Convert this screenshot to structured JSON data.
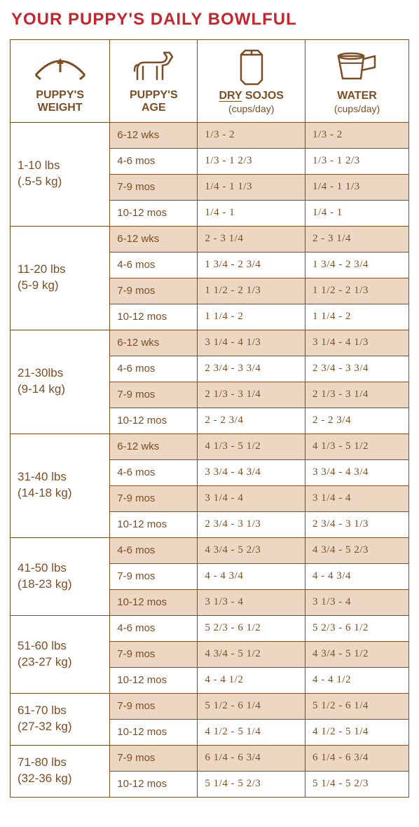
{
  "title": "YOUR PUPPY'S DAILY BOWLFUL",
  "colors": {
    "title": "#c1272d",
    "line": "#7d4e24",
    "text": "#7d4e24",
    "shade": "#ecd7c2",
    "bg": "#ffffff"
  },
  "headers": {
    "weight": {
      "label_l1": "PUPPY'S",
      "label_l2": "WEIGHT"
    },
    "age": {
      "label_l1": "PUPPY'S",
      "label_l2": "AGE"
    },
    "dry": {
      "label_prefix": "DRY",
      "label_suffix": " SOJOS",
      "sub": "(cups/day)"
    },
    "water": {
      "label": "WATER",
      "sub": "(cups/day)"
    }
  },
  "groups": [
    {
      "weight_l1": "1-10 lbs",
      "weight_l2": "(.5-5 kg)",
      "rows": [
        {
          "age": "6-12 wks",
          "dry": "1/3 - 2",
          "water": "1/3 - 2",
          "shade": true
        },
        {
          "age": "4-6 mos",
          "dry": "1/3 - 1 2/3",
          "water": "1/3 - 1 2/3",
          "shade": false
        },
        {
          "age": "7-9 mos",
          "dry": "1/4 - 1 1/3",
          "water": "1/4 - 1 1/3",
          "shade": true
        },
        {
          "age": "10-12 mos",
          "dry": "1/4 - 1",
          "water": "1/4 - 1",
          "shade": false
        }
      ]
    },
    {
      "weight_l1": "11-20 lbs",
      "weight_l2": "(5-9 kg)",
      "rows": [
        {
          "age": "6-12 wks",
          "dry": "2 - 3 1/4",
          "water": "2 - 3 1/4",
          "shade": true
        },
        {
          "age": "4-6 mos",
          "dry": "1 3/4 - 2 3/4",
          "water": "1 3/4 - 2 3/4",
          "shade": false
        },
        {
          "age": "7-9 mos",
          "dry": "1 1/2 - 2 1/3",
          "water": "1 1/2 - 2 1/3",
          "shade": true
        },
        {
          "age": "10-12 mos",
          "dry": "1 1/4 - 2",
          "water": "1 1/4 - 2",
          "shade": false
        }
      ]
    },
    {
      "weight_l1": "21-30lbs",
      "weight_l2": "(9-14 kg)",
      "rows": [
        {
          "age": "6-12 wks",
          "dry": "3 1/4 - 4 1/3",
          "water": "3 1/4 - 4 1/3",
          "shade": true
        },
        {
          "age": "4-6 mos",
          "dry": "2 3/4 - 3 3/4",
          "water": "2 3/4 - 3 3/4",
          "shade": false
        },
        {
          "age": "7-9 mos",
          "dry": "2 1/3 - 3 1/4",
          "water": "2 1/3 - 3 1/4",
          "shade": true
        },
        {
          "age": "10-12 mos",
          "dry": "2  - 2 3/4",
          "water": "2  - 2 3/4",
          "shade": false
        }
      ]
    },
    {
      "weight_l1": "31-40 lbs",
      "weight_l2": "(14-18 kg)",
      "rows": [
        {
          "age": "6-12 wks",
          "dry": "4 1/3 - 5 1/2",
          "water": "4 1/3 - 5 1/2",
          "shade": true
        },
        {
          "age": "4-6 mos",
          "dry": "3 3/4 - 4 3/4",
          "water": "3 3/4 - 4 3/4",
          "shade": false
        },
        {
          "age": "7-9 mos",
          "dry": "3 1/4 - 4",
          "water": "3 1/4 - 4",
          "shade": true
        },
        {
          "age": "10-12 mos",
          "dry": "2 3/4 - 3 1/3",
          "water": "2 3/4 - 3 1/3",
          "shade": false
        }
      ]
    },
    {
      "weight_l1": "41-50 lbs",
      "weight_l2": "(18-23 kg)",
      "rows": [
        {
          "age": "4-6 mos",
          "dry": "4 3/4 - 5 2/3",
          "water": "4 3/4 - 5 2/3",
          "shade": true
        },
        {
          "age": "7-9 mos",
          "dry": "4 - 4 3/4",
          "water": "4 - 4 3/4",
          "shade": false
        },
        {
          "age": "10-12 mos",
          "dry": "3 1/3 - 4",
          "water": "3 1/3 - 4",
          "shade": true
        }
      ]
    },
    {
      "weight_l1": "51-60 lbs",
      "weight_l2": "(23-27 kg)",
      "rows": [
        {
          "age": "4-6 mos",
          "dry": "5 2/3 - 6 1/2",
          "water": "5 2/3 - 6 1/2",
          "shade": false
        },
        {
          "age": "7-9 mos",
          "dry": "4 3/4 - 5 1/2",
          "water": "4 3/4 - 5 1/2",
          "shade": true
        },
        {
          "age": "10-12 mos",
          "dry": "4 - 4 1/2",
          "water": "4 - 4 1/2",
          "shade": false
        }
      ]
    },
    {
      "weight_l1": "61-70 lbs",
      "weight_l2": "(27-32 kg)",
      "rows": [
        {
          "age": "7-9 mos",
          "dry": "5 1/2 - 6 1/4",
          "water": "5 1/2 - 6 1/4",
          "shade": true
        },
        {
          "age": "10-12 mos",
          "dry": "4 1/2 - 5 1/4",
          "water": "4 1/2 - 5 1/4",
          "shade": false
        }
      ]
    },
    {
      "weight_l1": "71-80 lbs",
      "weight_l2": "(32-36 kg)",
      "rows": [
        {
          "age": "7-9 mos",
          "dry": "6 1/4 - 6 3/4",
          "water": "6 1/4 - 6 3/4",
          "shade": true
        },
        {
          "age": "10-12 mos",
          "dry": "5 1/4 - 5 2/3",
          "water": "5 1/4 - 5 2/3",
          "shade": false
        }
      ]
    }
  ]
}
